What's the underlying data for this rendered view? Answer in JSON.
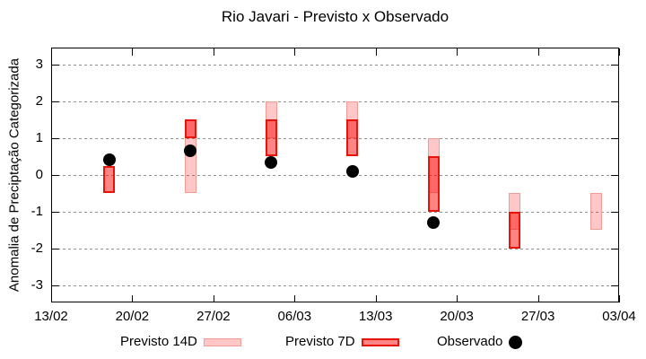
{
  "chart_data": {
    "type": "candlestick",
    "title": "Rio Javari - Previsto x Observado",
    "ylabel": "Anomalia de Preciptação Categorizada",
    "ylim": [
      -3.47,
      3.46
    ],
    "yticks": [
      3,
      2,
      1,
      0,
      -1,
      -2,
      -3
    ],
    "grid": true,
    "legend_position": "bottom",
    "x_axis": {
      "tick_labels": [
        "13/02",
        "20/02",
        "27/02",
        "06/03",
        "13/03",
        "20/03",
        "27/03",
        "03/04"
      ],
      "tick_days": [
        0,
        7,
        14,
        21,
        28,
        35,
        42,
        49
      ],
      "range_days": [
        0,
        49
      ]
    },
    "series": [
      {
        "name": "Previsto 14D",
        "type": "box",
        "fill": "rgba(255,0,0,0.22)",
        "border": "#f09b93",
        "points": [
          {
            "day": 12,
            "date": "25/02",
            "low": -0.5,
            "high": 1.5
          },
          {
            "day": 19,
            "date": "04/03",
            "low": 1.0,
            "high": 2.0
          },
          {
            "day": 26,
            "date": "11/03",
            "low": 1.0,
            "high": 2.0
          },
          {
            "day": 33,
            "date": "18/03",
            "low": -0.5,
            "high": 1.0
          },
          {
            "day": 40,
            "date": "25/03",
            "low": -1.5,
            "high": -0.5
          },
          {
            "day": 47,
            "date": "01/04",
            "low": -1.5,
            "high": -0.5
          }
        ]
      },
      {
        "name": "Previsto 7D",
        "type": "box",
        "fill": "rgba(255,0,0,0.48)",
        "border": "#e81309",
        "points": [
          {
            "day": 5,
            "date": "18/02",
            "low": -0.5,
            "high": 0.25
          },
          {
            "day": 12,
            "date": "25/02",
            "low": 1.0,
            "high": 1.5
          },
          {
            "day": 19,
            "date": "04/03",
            "low": 0.5,
            "high": 1.5
          },
          {
            "day": 26,
            "date": "11/03",
            "low": 0.5,
            "high": 1.5
          },
          {
            "day": 33,
            "date": "18/03",
            "low": -1.0,
            "high": 0.5
          },
          {
            "day": 40,
            "date": "25/03",
            "low": -2.0,
            "high": -1.0
          }
        ]
      },
      {
        "name": "Observado",
        "type": "scatter",
        "color": "#000000",
        "points": [
          {
            "day": 5,
            "date": "18/02",
            "value": 0.4
          },
          {
            "day": 12,
            "date": "25/02",
            "value": 0.65
          },
          {
            "day": 19,
            "date": "04/03",
            "value": 0.35
          },
          {
            "day": 26,
            "date": "11/03",
            "value": 0.1
          },
          {
            "day": 33,
            "date": "18/03",
            "value": -1.3
          }
        ]
      }
    ]
  }
}
